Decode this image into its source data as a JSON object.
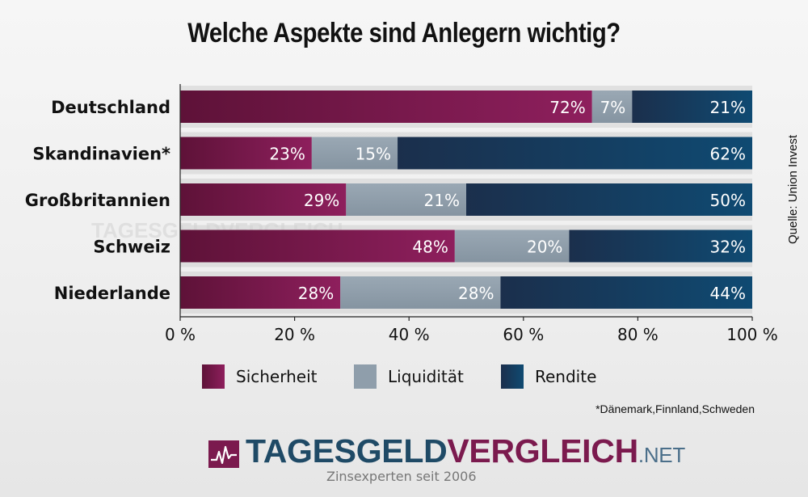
{
  "title": "Welche Aspekte sind Anlegern wichtig?",
  "source": "Quelle: Union Invest",
  "footnote": "*Dänemark,Finnland,Schweden",
  "watermark": "TAGESGELDVERGLEICH",
  "logo": {
    "part1": "TAGESGELD",
    "part2": "VERGLEICH",
    "tld": ".NET",
    "tagline": "Zinsexperten seit 2006"
  },
  "colors": {
    "sicherheit": "#7b1a4e",
    "liquiditaet": "#8f9eab",
    "rendite": "#163a5c",
    "track": "#cfcfcf"
  },
  "chart_data": {
    "type": "bar",
    "orientation": "horizontal",
    "stacked": true,
    "categories": [
      "Deutschland",
      "Skandinavien*",
      "Großbritannien",
      "Schweiz",
      "Niederlande"
    ],
    "series": [
      {
        "name": "Sicherheit",
        "values": [
          72,
          23,
          29,
          48,
          28
        ]
      },
      {
        "name": "Liquidität",
        "values": [
          7,
          15,
          21,
          20,
          28
        ]
      },
      {
        "name": "Rendite",
        "values": [
          21,
          62,
          50,
          32,
          44
        ]
      }
    ],
    "data_labels": [
      [
        "72%",
        "7%",
        "21%"
      ],
      [
        "23%",
        "15%",
        "62%"
      ],
      [
        "29%",
        "21%",
        "50%"
      ],
      [
        "48%",
        "20%",
        "32%"
      ],
      [
        "28%",
        "28%",
        "44%"
      ]
    ],
    "xlim": [
      0,
      100
    ],
    "xticks": [
      0,
      20,
      40,
      60,
      80,
      100
    ],
    "xtick_labels": [
      "0 %",
      "20 %",
      "40 %",
      "60 %",
      "80 %",
      "100 %"
    ],
    "legend_position": "bottom",
    "grid": false
  }
}
